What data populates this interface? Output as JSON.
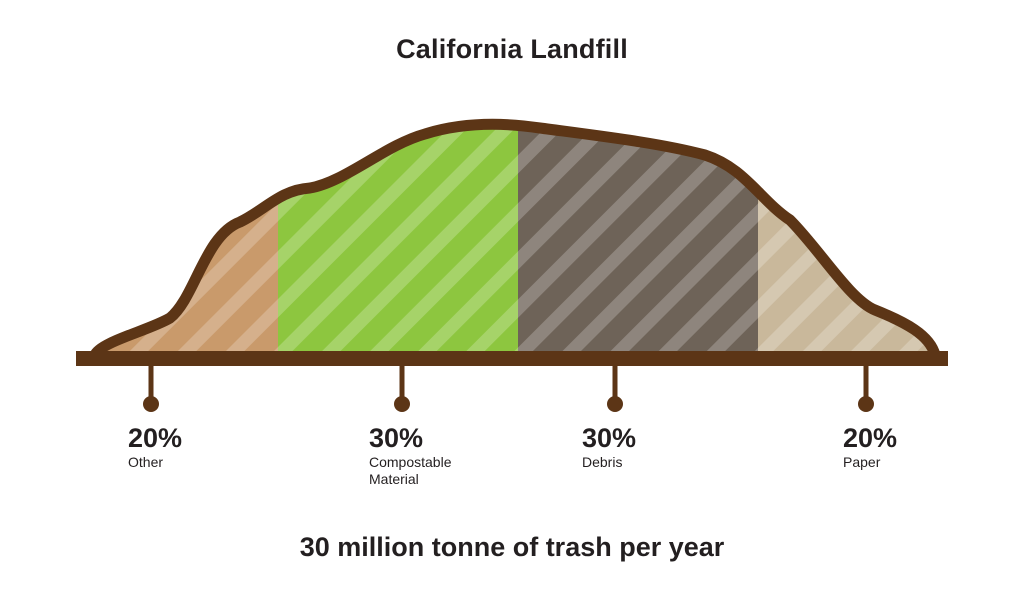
{
  "title": "California Landfill",
  "subtitle": "30 million tonne of trash per year",
  "colors": {
    "outline": "#5c3516",
    "other": "#c99a6b",
    "compostable": "#8dc63f",
    "debris": "#6e6358",
    "paper": "#c9b89b",
    "text": "#231f20"
  },
  "chart_data": {
    "type": "area",
    "title": "California Landfill",
    "subtitle": "30 million tonne of trash per year",
    "segments": [
      {
        "pct_label": "20%",
        "name": "Other",
        "value": 20,
        "color": "#c99a6b"
      },
      {
        "pct_label": "30%",
        "name": "Compostable Material",
        "value": 30,
        "color": "#8dc63f"
      },
      {
        "pct_label": "30%",
        "name": "Debris",
        "value": 30,
        "color": "#6e6358"
      },
      {
        "pct_label": "20%",
        "name": "Paper",
        "value": 20,
        "color": "#c9b89b"
      }
    ]
  }
}
